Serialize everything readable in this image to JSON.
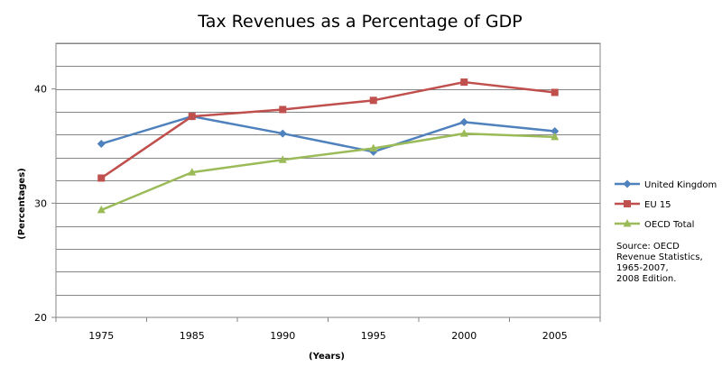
{
  "chart_data": {
    "type": "line",
    "title": "Tax Revenues as a Percentage of GDP",
    "xlabel": "(Years)",
    "ylabel": "(Percentages)",
    "categories": [
      "1975",
      "1985",
      "1990",
      "1995",
      "2000",
      "2005"
    ],
    "ylim": [
      20,
      44
    ],
    "yticks": [
      20,
      30,
      40
    ],
    "grid_step": 2,
    "series": [
      {
        "name": "United Kingdom",
        "color": "#4F81BD",
        "marker": "diamond",
        "values": [
          35.2,
          37.6,
          36.1,
          34.5,
          37.1,
          36.3
        ]
      },
      {
        "name": "EU 15",
        "color": "#C0504D",
        "marker": "square",
        "values": [
          32.2,
          37.6,
          38.2,
          39.0,
          40.6,
          39.7
        ]
      },
      {
        "name": "OECD Total",
        "color": "#9BBB59",
        "marker": "triangle",
        "values": [
          29.4,
          32.7,
          33.8,
          34.8,
          36.1,
          35.8
        ]
      }
    ],
    "legend_position": "right",
    "annotation": [
      "Source: OECD",
      "Revenue Statistics,",
      "1965-2007,",
      "2008 Edition."
    ]
  }
}
